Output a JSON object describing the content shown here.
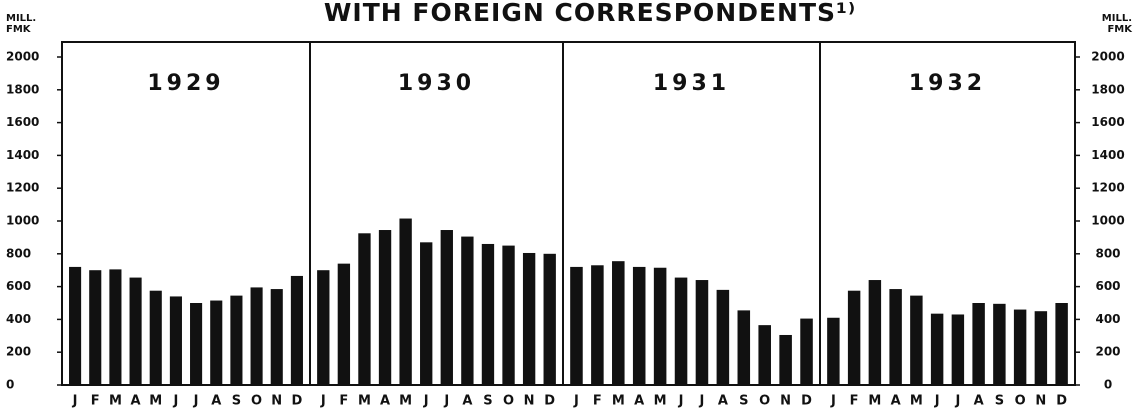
{
  "chart_data": {
    "type": "bar",
    "title": "WITH FOREIGN CORRESPONDENTS¹⁾",
    "y_axis_label": "MILL. FMK",
    "y2_axis_label": "MILL. FMK",
    "year_labels": [
      "1929",
      "1930",
      "1931",
      "1932"
    ],
    "categories": [
      "J",
      "F",
      "M",
      "A",
      "M",
      "J",
      "J",
      "A",
      "S",
      "O",
      "N",
      "D",
      "J",
      "F",
      "M",
      "A",
      "M",
      "J",
      "J",
      "A",
      "S",
      "O",
      "N",
      "D",
      "J",
      "F",
      "M",
      "A",
      "M",
      "J",
      "J",
      "A",
      "S",
      "O",
      "N",
      "D",
      "J",
      "F",
      "M",
      "A",
      "M",
      "J",
      "J",
      "A",
      "S",
      "O",
      "N",
      "D"
    ],
    "values": [
      720,
      700,
      705,
      655,
      575,
      540,
      500,
      515,
      545,
      595,
      585,
      665,
      700,
      740,
      925,
      945,
      1015,
      870,
      945,
      905,
      860,
      850,
      805,
      800,
      720,
      730,
      755,
      720,
      715,
      655,
      640,
      580,
      455,
      365,
      305,
      405,
      410,
      575,
      640,
      585,
      545,
      435,
      430,
      500,
      495,
      460,
      450,
      500
    ],
    "color": "#111111",
    "ylim": [
      0,
      2000
    ],
    "yticks": [
      0,
      200,
      400,
      600,
      800,
      1000,
      1200,
      1400,
      1600,
      1800,
      2000
    ],
    "y2lim": [
      0,
      2000
    ],
    "y2ticks": [
      0,
      200,
      400,
      600,
      800,
      1000,
      1200,
      1400,
      1600,
      1800,
      2000
    ]
  }
}
